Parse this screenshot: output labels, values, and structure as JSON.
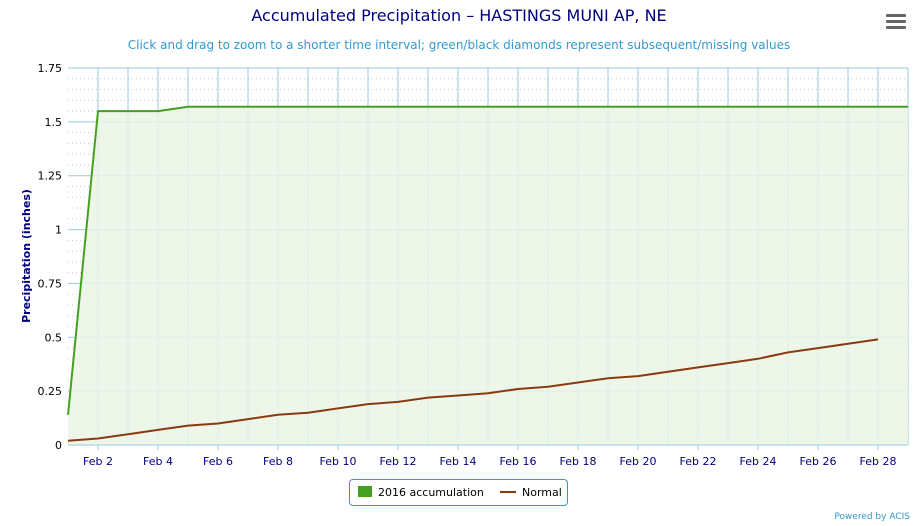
{
  "menu_icon": "hamburger-menu-icon",
  "chart_data": {
    "type": "area",
    "title": "Accumulated Precipitation – HASTINGS MUNI AP, NE",
    "subtitle": "Click and drag to zoom to a shorter time interval; green/black diamonds represent subsequent/missing values",
    "ylabel": "Precipitation (inches)",
    "xlabel": "",
    "ylim": [
      0,
      1.75
    ],
    "yticks": [
      "0",
      "0.25",
      "0.5",
      "0.75",
      "1",
      "1.25",
      "1.5",
      "1.75"
    ],
    "xlim": [
      1,
      29
    ],
    "xticks": [
      {
        "day": 2,
        "label": "Feb 2"
      },
      {
        "day": 4,
        "label": "Feb 4"
      },
      {
        "day": 6,
        "label": "Feb 6"
      },
      {
        "day": 8,
        "label": "Feb 8"
      },
      {
        "day": 10,
        "label": "Feb 10"
      },
      {
        "day": 12,
        "label": "Feb 12"
      },
      {
        "day": 14,
        "label": "Feb 14"
      },
      {
        "day": 16,
        "label": "Feb 16"
      },
      {
        "day": 18,
        "label": "Feb 18"
      },
      {
        "day": 20,
        "label": "Feb 20"
      },
      {
        "day": 22,
        "label": "Feb 22"
      },
      {
        "day": 24,
        "label": "Feb 24"
      },
      {
        "day": 26,
        "label": "Feb 26"
      },
      {
        "day": 28,
        "label": "Feb 28"
      }
    ],
    "grid": true,
    "legend_position": "bottom-center",
    "series": [
      {
        "name": "2016 accumulation",
        "kind": "area",
        "color": "#44a020",
        "fill": "#eaf5e4",
        "x": [
          1,
          2,
          3,
          4,
          5,
          6,
          7,
          8,
          9,
          10,
          11,
          12,
          13,
          14,
          15,
          16,
          17,
          18,
          19,
          20,
          21,
          22,
          23,
          24,
          25,
          26,
          27,
          28,
          29
        ],
        "values": [
          0.14,
          1.55,
          1.55,
          1.55,
          1.57,
          1.57,
          1.57,
          1.57,
          1.57,
          1.57,
          1.57,
          1.57,
          1.57,
          1.57,
          1.57,
          1.57,
          1.57,
          1.57,
          1.57,
          1.57,
          1.57,
          1.57,
          1.57,
          1.57,
          1.57,
          1.57,
          1.57,
          1.57,
          1.57
        ]
      },
      {
        "name": "Normal",
        "kind": "line",
        "color": "#8b3a0f",
        "x": [
          1,
          2,
          3,
          4,
          5,
          6,
          7,
          8,
          9,
          10,
          11,
          12,
          13,
          14,
          15,
          16,
          17,
          18,
          19,
          20,
          21,
          22,
          23,
          24,
          25,
          26,
          27,
          28
        ],
        "values": [
          0.02,
          0.03,
          0.05,
          0.07,
          0.09,
          0.1,
          0.12,
          0.14,
          0.15,
          0.17,
          0.19,
          0.2,
          0.22,
          0.23,
          0.24,
          0.26,
          0.27,
          0.29,
          0.31,
          0.32,
          0.34,
          0.36,
          0.38,
          0.4,
          0.43,
          0.45,
          0.47,
          0.49
        ]
      }
    ],
    "credit": "Powered by ACIS"
  }
}
